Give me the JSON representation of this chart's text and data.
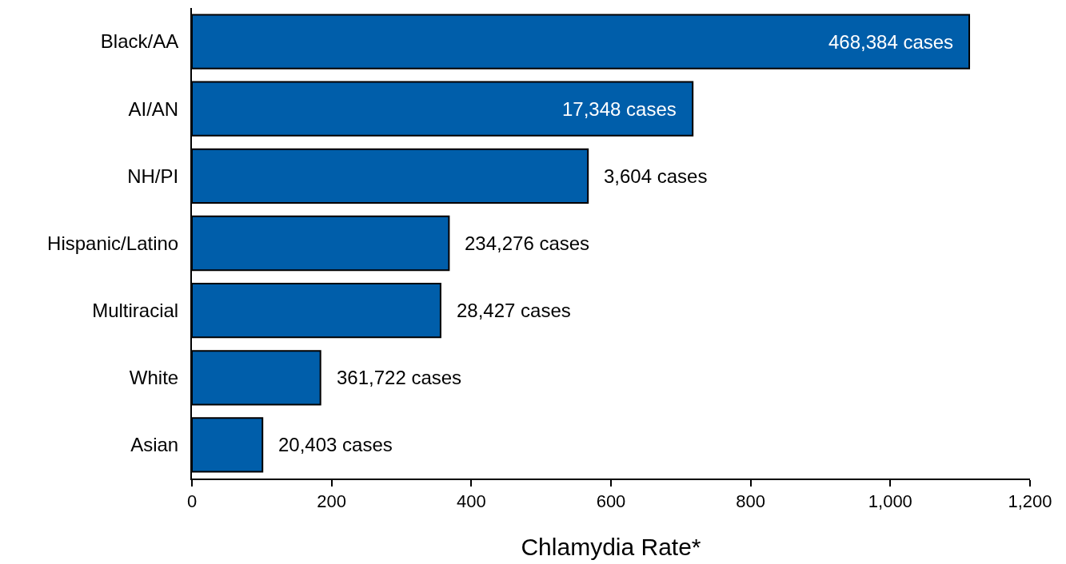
{
  "chart_data": {
    "type": "bar",
    "orientation": "horizontal",
    "xlabel": "Chlamydia Rate*",
    "categories": [
      "Black/AA",
      "AI/AN",
      "NH/PI",
      "Hispanic/Latino",
      "Multiracial",
      "White",
      "Asian"
    ],
    "values": [
      1113,
      717,
      567,
      368,
      356,
      184,
      101
    ],
    "annotations": [
      {
        "text": "468,384 cases",
        "x": 1113,
        "y": "Black/AA"
      },
      {
        "text": "17,348 cases",
        "x": 717,
        "y": "AI/AN"
      },
      {
        "text": "3,604 cases",
        "x": 567,
        "y": "NH/PI"
      },
      {
        "text": "234,276 cases",
        "x": 368,
        "y": "Hispanic/Latino"
      },
      {
        "text": "28,427 cases",
        "x": 356,
        "y": "Multiracial"
      },
      {
        "text": "361,722 cases",
        "x": 184,
        "y": "White"
      },
      {
        "text": "20,403 cases",
        "x": 101,
        "y": "Asian"
      }
    ],
    "color": "#005eaa",
    "xlim": [
      0,
      1200
    ],
    "xticks": [
      0,
      200,
      400,
      600,
      800,
      {
        "value": 1000,
        "label": "1,000"
      },
      {
        "value": 1200,
        "label": "1,200"
      }
    ]
  }
}
